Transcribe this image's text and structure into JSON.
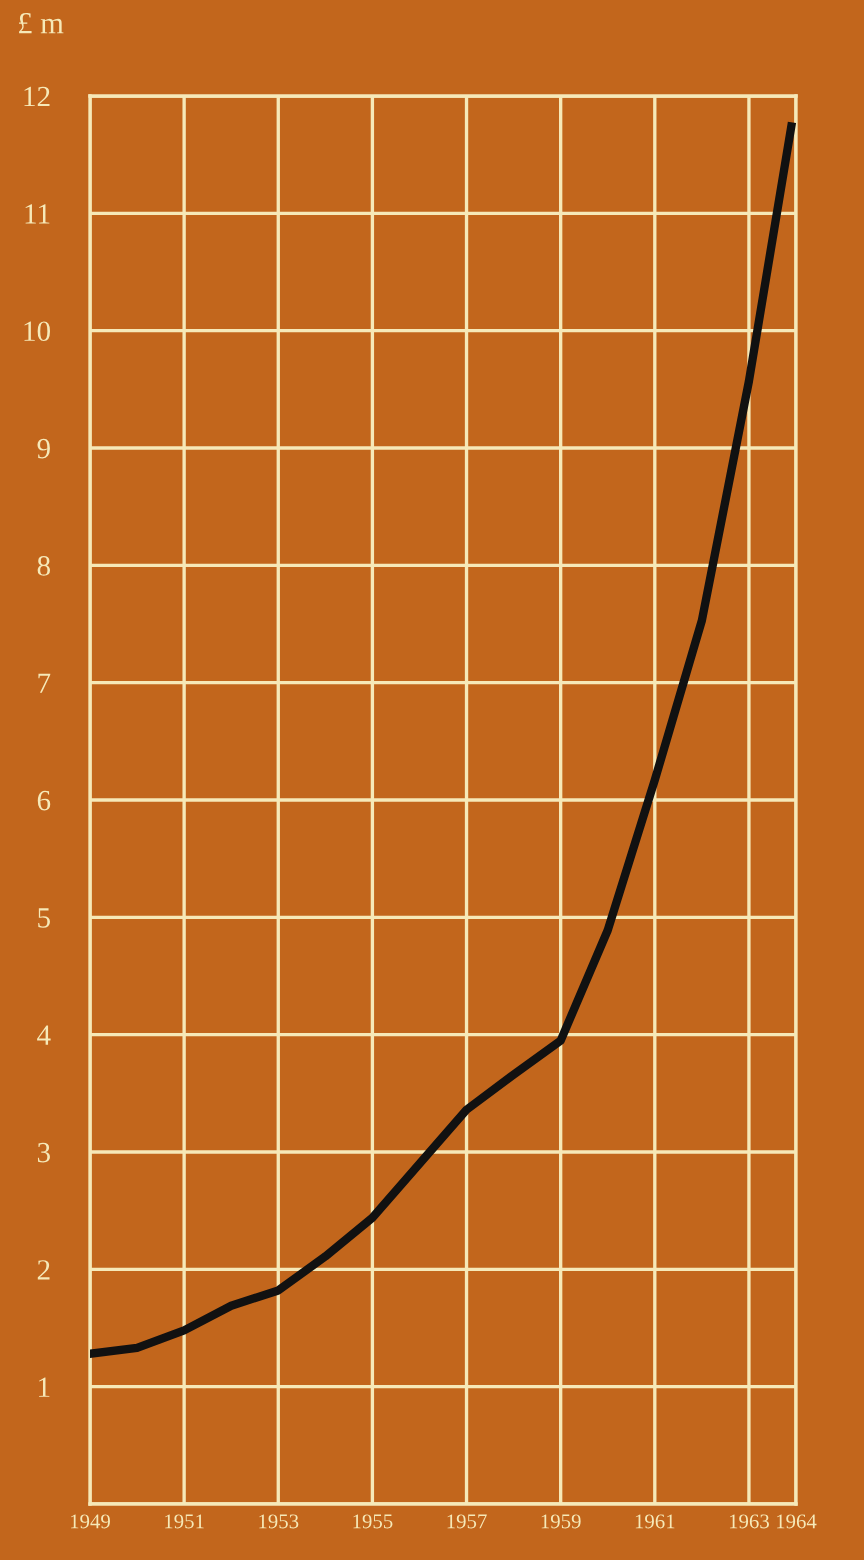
{
  "chart_data": {
    "type": "line",
    "ylabel": "£ m",
    "x": [
      1949,
      1950,
      1951,
      1952,
      1953,
      1954,
      1955,
      1956,
      1957,
      1958,
      1959,
      1960,
      1961,
      1962,
      1963,
      1963.9
    ],
    "series": [
      {
        "color": "#111111",
        "values": [
          1.28,
          1.33,
          1.48,
          1.69,
          1.82,
          2.11,
          2.44,
          2.9,
          3.36,
          3.66,
          3.95,
          4.89,
          6.17,
          7.53,
          9.57,
          11.74
        ]
      }
    ],
    "xlim": [
      1949,
      1964
    ],
    "xticks": [
      1949,
      1951,
      1953,
      1955,
      1957,
      1959,
      1961,
      1963,
      1964
    ],
    "ylim": [
      0,
      12
    ],
    "yticks": [
      {
        "value": 0,
        "label": null
      },
      1,
      2,
      3,
      4,
      5,
      6,
      7,
      8,
      9,
      10,
      11,
      12
    ],
    "grid": true,
    "marker": "none",
    "line_style": "solid"
  }
}
